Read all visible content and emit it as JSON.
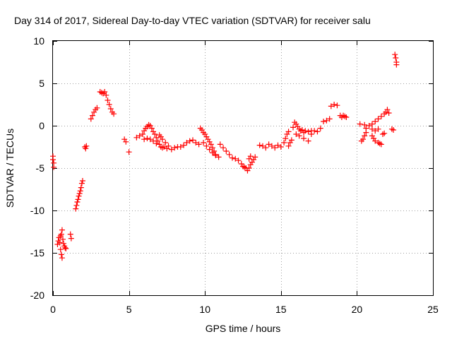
{
  "chart_data": {
    "type": "scatter",
    "title": "Day 314 of 2017, Sidereal Day-to-day VTEC variation (SDTVAR) for receiver salu",
    "xlabel": "GPS time / hours",
    "ylabel": "SDTVAR / TECUs",
    "xlim": [
      0,
      25
    ],
    "ylim": [
      -20,
      10
    ],
    "xticks": [
      0,
      5,
      10,
      15,
      20,
      25
    ],
    "xtick_labels": [
      "0",
      "5",
      "10",
      "15",
      "20",
      "25"
    ],
    "yticks": [
      -20,
      -15,
      -10,
      -5,
      0,
      5,
      10
    ],
    "ytick_labels": [
      "-20",
      "-15",
      "-10",
      "-5",
      "0",
      "5",
      "10"
    ],
    "grid": true,
    "marker": "+",
    "color": "#ff0000",
    "series": [
      {
        "name": "SDTVAR",
        "points": [
          [
            0.0,
            -3.6
          ],
          [
            0.0,
            -4.0
          ],
          [
            0.05,
            -4.4
          ],
          [
            0.05,
            -4.9
          ],
          [
            0.3,
            -14.0
          ],
          [
            0.35,
            -13.6
          ],
          [
            0.4,
            -13.2
          ],
          [
            0.45,
            -13.8
          ],
          [
            0.5,
            -13.0
          ],
          [
            0.5,
            -14.6
          ],
          [
            0.55,
            -12.8
          ],
          [
            0.55,
            -15.2
          ],
          [
            0.6,
            -12.3
          ],
          [
            0.6,
            -15.6
          ],
          [
            0.65,
            -13.4
          ],
          [
            0.7,
            -13.9
          ],
          [
            0.75,
            -14.2
          ],
          [
            0.8,
            -14.4
          ],
          [
            0.85,
            -14.5
          ],
          [
            1.15,
            -12.8
          ],
          [
            1.2,
            -13.3
          ],
          [
            1.5,
            -9.8
          ],
          [
            1.55,
            -9.4
          ],
          [
            1.6,
            -9.0
          ],
          [
            1.65,
            -8.7
          ],
          [
            1.7,
            -8.3
          ],
          [
            1.75,
            -8.0
          ],
          [
            1.8,
            -7.7
          ],
          [
            1.85,
            -7.3
          ],
          [
            1.9,
            -6.8
          ],
          [
            1.95,
            -6.5
          ],
          [
            2.1,
            -2.5
          ],
          [
            2.15,
            -2.7
          ],
          [
            2.2,
            -2.4
          ],
          [
            2.5,
            0.8
          ],
          [
            2.6,
            1.2
          ],
          [
            2.7,
            1.6
          ],
          [
            2.8,
            1.9
          ],
          [
            2.9,
            2.1
          ],
          [
            3.1,
            4.0
          ],
          [
            3.2,
            3.9
          ],
          [
            3.3,
            3.8
          ],
          [
            3.4,
            4.0
          ],
          [
            3.5,
            3.6
          ],
          [
            3.6,
            3.0
          ],
          [
            3.7,
            2.5
          ],
          [
            3.8,
            2.0
          ],
          [
            3.9,
            1.6
          ],
          [
            4.0,
            1.4
          ],
          [
            4.7,
            -1.6
          ],
          [
            4.8,
            -1.9
          ],
          [
            5.0,
            -3.1
          ],
          [
            5.5,
            -1.4
          ],
          [
            5.7,
            -1.2
          ],
          [
            5.9,
            -1.0
          ],
          [
            6.0,
            -0.6
          ],
          [
            6.1,
            -0.3
          ],
          [
            6.2,
            -0.1
          ],
          [
            6.3,
            0.1
          ],
          [
            6.4,
            0.0
          ],
          [
            6.5,
            -0.3
          ],
          [
            6.6,
            -0.7
          ],
          [
            6.7,
            -1.0
          ],
          [
            6.8,
            -1.4
          ],
          [
            6.9,
            -1.8
          ],
          [
            7.0,
            -2.2
          ],
          [
            7.1,
            -2.5
          ],
          [
            7.2,
            -2.6
          ],
          [
            7.3,
            -2.5
          ],
          [
            6.0,
            -1.6
          ],
          [
            6.2,
            -1.5
          ],
          [
            6.4,
            -1.6
          ],
          [
            6.6,
            -1.8
          ],
          [
            6.8,
            -2.1
          ],
          [
            7.0,
            -1.1
          ],
          [
            7.1,
            -1.3
          ],
          [
            7.2,
            -1.6
          ],
          [
            7.4,
            -2.0
          ],
          [
            7.5,
            -2.7
          ],
          [
            7.6,
            -2.4
          ],
          [
            7.8,
            -2.8
          ],
          [
            8.0,
            -2.6
          ],
          [
            8.2,
            -2.5
          ],
          [
            8.4,
            -2.5
          ],
          [
            8.6,
            -2.3
          ],
          [
            8.8,
            -2.0
          ],
          [
            9.0,
            -1.8
          ],
          [
            9.2,
            -1.7
          ],
          [
            9.4,
            -2.0
          ],
          [
            9.6,
            -2.2
          ],
          [
            9.7,
            -0.3
          ],
          [
            9.8,
            -0.5
          ],
          [
            9.9,
            -0.8
          ],
          [
            10.0,
            -1.0
          ],
          [
            10.1,
            -1.3
          ],
          [
            10.2,
            -1.6
          ],
          [
            10.3,
            -1.9
          ],
          [
            10.4,
            -2.2
          ],
          [
            10.5,
            -2.6
          ],
          [
            10.6,
            -3.0
          ],
          [
            10.7,
            -3.4
          ],
          [
            9.9,
            -2.0
          ],
          [
            10.1,
            -2.4
          ],
          [
            10.3,
            -2.8
          ],
          [
            10.5,
            -3.2
          ],
          [
            10.7,
            -3.5
          ],
          [
            10.9,
            -3.7
          ],
          [
            11.0,
            -2.2
          ],
          [
            11.2,
            -2.6
          ],
          [
            11.4,
            -3.0
          ],
          [
            11.6,
            -3.4
          ],
          [
            11.8,
            -3.8
          ],
          [
            12.0,
            -3.9
          ],
          [
            12.2,
            -4.1
          ],
          [
            12.4,
            -4.5
          ],
          [
            12.5,
            -4.8
          ],
          [
            12.6,
            -4.9
          ],
          [
            12.7,
            -5.0
          ],
          [
            12.8,
            -5.3
          ],
          [
            12.9,
            -5.0
          ],
          [
            13.0,
            -4.6
          ],
          [
            13.1,
            -4.3
          ],
          [
            13.2,
            -4.0
          ],
          [
            13.3,
            -3.7
          ],
          [
            12.9,
            -3.9
          ],
          [
            13.0,
            -3.6
          ],
          [
            13.6,
            -2.3
          ],
          [
            13.8,
            -2.4
          ],
          [
            14.0,
            -2.6
          ],
          [
            14.2,
            -2.2
          ],
          [
            14.4,
            -2.4
          ],
          [
            14.6,
            -2.6
          ],
          [
            14.8,
            -2.3
          ],
          [
            15.0,
            -2.5
          ],
          [
            15.2,
            -2.0
          ],
          [
            15.3,
            -1.5
          ],
          [
            15.4,
            -1.0
          ],
          [
            15.5,
            -0.7
          ],
          [
            15.5,
            -2.4
          ],
          [
            15.6,
            -2.0
          ],
          [
            15.7,
            -1.7
          ],
          [
            15.8,
            -0.2
          ],
          [
            15.9,
            0.4
          ],
          [
            16.0,
            0.2
          ],
          [
            16.1,
            -0.1
          ],
          [
            16.2,
            -0.4
          ],
          [
            16.3,
            -0.6
          ],
          [
            16.4,
            -0.5
          ],
          [
            16.5,
            -0.8
          ],
          [
            16.6,
            -0.6
          ],
          [
            16.8,
            -0.7
          ],
          [
            17.0,
            -0.6
          ],
          [
            17.2,
            -0.6
          ],
          [
            17.4,
            -0.7
          ],
          [
            16.0,
            -1.0
          ],
          [
            16.2,
            -1.2
          ],
          [
            16.5,
            -1.5
          ],
          [
            16.8,
            -1.8
          ],
          [
            17.0,
            -1.0
          ],
          [
            17.6,
            -0.3
          ],
          [
            17.8,
            0.5
          ],
          [
            18.0,
            0.6
          ],
          [
            18.2,
            0.8
          ],
          [
            18.3,
            2.3
          ],
          [
            18.5,
            2.5
          ],
          [
            18.7,
            2.4
          ],
          [
            18.9,
            1.2
          ],
          [
            19.0,
            1.0
          ],
          [
            19.1,
            1.2
          ],
          [
            19.2,
            1.1
          ],
          [
            19.3,
            1.0
          ],
          [
            20.2,
            0.2
          ],
          [
            20.3,
            -1.8
          ],
          [
            20.4,
            -1.6
          ],
          [
            20.5,
            -1.2
          ],
          [
            20.6,
            -0.8
          ],
          [
            20.5,
            0.1
          ],
          [
            20.6,
            -0.3
          ],
          [
            20.8,
            0.0
          ],
          [
            21.0,
            -1.2
          ],
          [
            21.1,
            -1.5
          ],
          [
            21.2,
            -1.8
          ],
          [
            21.4,
            -2.0
          ],
          [
            21.5,
            -2.1
          ],
          [
            21.6,
            -2.2
          ],
          [
            21.7,
            -1.0
          ],
          [
            21.0,
            0.2
          ],
          [
            21.2,
            0.5
          ],
          [
            21.4,
            0.8
          ],
          [
            21.6,
            1.1
          ],
          [
            21.8,
            1.4
          ],
          [
            21.9,
            1.6
          ],
          [
            22.0,
            1.9
          ],
          [
            22.1,
            1.5
          ],
          [
            21.0,
            -0.4
          ],
          [
            21.2,
            -0.6
          ],
          [
            21.4,
            -0.4
          ],
          [
            21.8,
            -0.9
          ],
          [
            22.3,
            -0.4
          ],
          [
            22.4,
            -0.5
          ],
          [
            22.5,
            8.4
          ],
          [
            22.55,
            8.0
          ],
          [
            22.6,
            7.5
          ],
          [
            22.6,
            7.2
          ]
        ]
      }
    ]
  }
}
